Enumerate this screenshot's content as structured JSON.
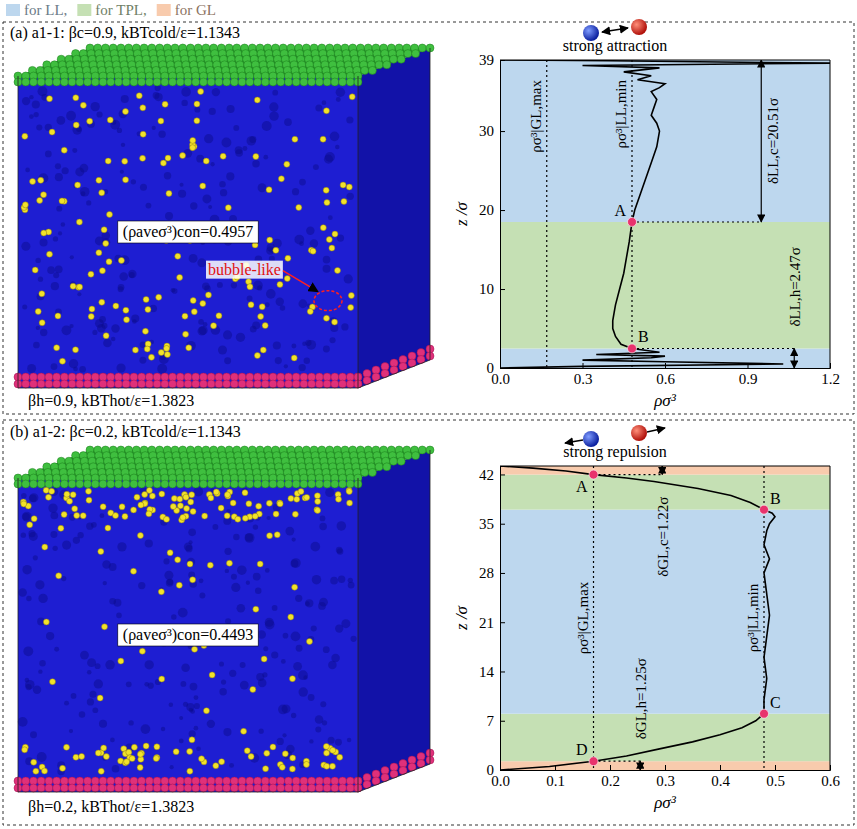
{
  "legend_bar": {
    "items": [
      {
        "name": "for LL,",
        "color": "#bdd7ee"
      },
      {
        "name": "for TPL,",
        "color": "#c5e0b4"
      },
      {
        "name": "for GL",
        "color": "#f8cbad"
      }
    ]
  },
  "chart_data": [
    {
      "type": "line",
      "title": "(a) a1-1: βc=0.9, kBTcold/ε=1.1343",
      "interaction": "strong attraction",
      "x_label": "ρσ³",
      "y_label": "z /σ",
      "color": "#000000",
      "x": [
        0.0,
        0.3,
        1.03,
        0.6,
        0.3,
        0.55,
        0.6,
        0.35,
        0.58,
        0.48,
        0.44,
        0.42,
        0.41,
        0.41,
        0.415,
        0.42,
        0.435,
        0.45,
        0.46,
        0.47,
        0.48,
        0.49,
        0.51,
        0.53,
        0.55,
        0.57,
        0.58,
        0.57,
        0.55,
        0.56,
        0.57,
        0.55,
        0.58,
        0.6,
        0.5,
        0.55,
        0.45,
        0.58,
        0.3,
        1.2,
        0.4,
        0.0
      ],
      "values": [
        0,
        0.2,
        0.5,
        0.8,
        1.0,
        1.3,
        1.5,
        1.7,
        2.0,
        2.47,
        3,
        4,
        5,
        6,
        7,
        8,
        10,
        12,
        14,
        16,
        18.49,
        20,
        22,
        24,
        26,
        28,
        30,
        31,
        32,
        33,
        34,
        35,
        35.5,
        36,
        36.5,
        37,
        37.5,
        38,
        38.3,
        38.6,
        38.9,
        39
      ],
      "xlim": [
        0,
        1.2
      ],
      "xticks": [
        {
          "value": 0,
          "label": "0.0"
        },
        0.3,
        0.6,
        0.9,
        1.2
      ],
      "ylim": [
        0,
        39
      ],
      "yticks": [
        0,
        10,
        20,
        30,
        39
      ],
      "regions": [
        {
          "from": 0,
          "to": 2.47,
          "color": "#bdd7ee"
        },
        {
          "from": 2.47,
          "to": 18.49,
          "color": "#c5e0b4"
        },
        {
          "from": 18.49,
          "to": 39,
          "color": "#bdd7ee"
        }
      ],
      "reference_lines": [
        {
          "label": "ρσ³|GL,max",
          "x": 0.17
        },
        {
          "label": "ρσ³|LL,min",
          "x": 0.48
        }
      ],
      "points": [
        {
          "label": "A",
          "x": 0.48,
          "y": 18.49
        },
        {
          "label": "B",
          "x": 0.48,
          "y": 2.47
        }
      ],
      "dimensions": [
        {
          "label": "δLL,c=20.51σ",
          "x": 0.95,
          "from": 18.49,
          "to": 39
        },
        {
          "label": "δLL,h=2.47σ",
          "x": 1.07,
          "from": 0,
          "to": 2.47
        }
      ],
      "snapshot": {
        "density_label": "(ρaveσ³)con=0.4957",
        "bottom_label": "βh=0.9, kBThot/ε=1.3823",
        "callout": "bubble-like"
      }
    },
    {
      "type": "line",
      "title": "(b) a1-2: βc=0.2, kBTcold/ε=1.1343",
      "interaction": "strong repulsion",
      "x_label": "ρσ³",
      "y_label": "z /σ",
      "color": "#000000",
      "x": [
        0.0,
        0.06,
        0.12,
        0.17,
        0.23,
        0.28,
        0.36,
        0.42,
        0.455,
        0.48,
        0.495,
        0.5,
        0.49,
        0.485,
        0.48,
        0.49,
        0.48,
        0.485,
        0.49,
        0.485,
        0.48,
        0.485,
        0.48,
        0.48,
        0.465,
        0.44,
        0.4,
        0.35,
        0.29,
        0.23,
        0.17,
        0.09,
        0.0
      ],
      "values": [
        43.2,
        42.9,
        42.5,
        41.98,
        41.5,
        41,
        40,
        39,
        38,
        37,
        36.5,
        36,
        35,
        34,
        32,
        30,
        28,
        25,
        22,
        19,
        16,
        13,
        10,
        8,
        7,
        6,
        5,
        4,
        3,
        2,
        1.25,
        0.5,
        0
      ],
      "xlim": [
        0,
        0.6
      ],
      "xticks": [
        {
          "value": 0,
          "label": "0.0"
        },
        0.1,
        0.2,
        0.3,
        0.4,
        0.5,
        0.6
      ],
      "ylim": [
        0,
        43.2
      ],
      "yticks": [
        0,
        7,
        14,
        21,
        28,
        35,
        42
      ],
      "regions": [
        {
          "from": 0,
          "to": 1.25,
          "color": "#f8cbad"
        },
        {
          "from": 1.25,
          "to": 8,
          "color": "#c5e0b4"
        },
        {
          "from": 8,
          "to": 37,
          "color": "#bdd7ee"
        },
        {
          "from": 37,
          "to": 41.98,
          "color": "#c5e0b4"
        },
        {
          "from": 41.98,
          "to": 43.2,
          "color": "#f8cbad"
        }
      ],
      "reference_lines": [
        {
          "label": "ρσ³|GL,max",
          "x": 0.17
        },
        {
          "label": "ρσ³|LL,min",
          "x": 0.48
        }
      ],
      "points": [
        {
          "label": "A",
          "x": 0.17,
          "y": 41.98
        },
        {
          "label": "B",
          "x": 0.48,
          "y": 37
        },
        {
          "label": "C",
          "x": 0.48,
          "y": 8
        },
        {
          "label": "D",
          "x": 0.17,
          "y": 1.25
        }
      ],
      "dimensions": [
        {
          "label": "δGL,c=1.22σ",
          "x": 0.295,
          "from": 41.98,
          "to": 43.2
        },
        {
          "label": "δGL,h=1.25σ",
          "x": 0.255,
          "from": 0,
          "to": 1.25
        }
      ],
      "snapshot": {
        "density_label": "(ρaveσ³)con=0.4493",
        "bottom_label": "βh=0.2, kBThot/ε=1.3823"
      }
    }
  ]
}
